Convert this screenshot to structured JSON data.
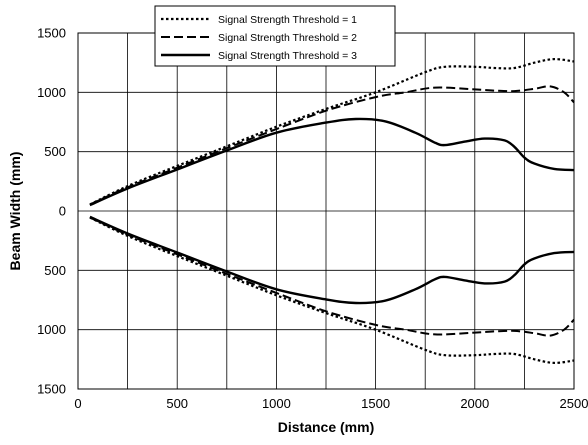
{
  "chart_data": {
    "type": "line",
    "title": "",
    "xlabel": "Distance (mm)",
    "ylabel": "Beam Width (mm)",
    "xlim": [
      0,
      2500
    ],
    "ylim": [
      -1500,
      1500
    ],
    "grid": true,
    "legend_position": "top",
    "x_ticks": [
      0,
      500,
      1000,
      1500,
      2000,
      2500
    ],
    "x_tick_labels": [
      "0",
      "500",
      "1000",
      "1500",
      "2000",
      "2500"
    ],
    "y_ticks": [
      1500,
      1000,
      500,
      0,
      -500,
      -1000,
      -1500
    ],
    "y_tick_labels": [
      "1500",
      "1000",
      "500",
      "0",
      "500",
      "1000",
      "1500"
    ],
    "series": [
      {
        "name": "Signal Strength Threshold = 1",
        "dash": "dotted",
        "x": [
          60,
          250,
          500,
          750,
          1000,
          1250,
          1500,
          1750,
          1850,
          2000,
          2100,
          2200,
          2300,
          2400,
          2500
        ],
        "upper": [
          55,
          210,
          380,
          545,
          710,
          860,
          1000,
          1170,
          1215,
          1215,
          1205,
          1205,
          1250,
          1280,
          1260
        ],
        "lower": [
          -55,
          -210,
          -380,
          -545,
          -710,
          -860,
          -1000,
          -1170,
          -1215,
          -1215,
          -1205,
          -1205,
          -1250,
          -1280,
          -1260
        ]
      },
      {
        "name": "Signal Strength Threshold = 2",
        "dash": "dashed",
        "x": [
          60,
          250,
          500,
          750,
          1000,
          1250,
          1500,
          1650,
          1800,
          2000,
          2100,
          2200,
          2300,
          2380,
          2450,
          2500
        ],
        "upper": [
          55,
          200,
          365,
          530,
          690,
          845,
          960,
          1000,
          1040,
          1025,
          1015,
          1010,
          1030,
          1050,
          1000,
          915
        ],
        "lower": [
          -55,
          -200,
          -365,
          -530,
          -690,
          -845,
          -960,
          -1000,
          -1040,
          -1025,
          -1015,
          -1010,
          -1030,
          -1050,
          -1000,
          -915
        ]
      },
      {
        "name": "Signal Strength Threshold = 3",
        "dash": "solid",
        "x": [
          60,
          250,
          500,
          750,
          1000,
          1250,
          1400,
          1550,
          1700,
          1800,
          1850,
          1950,
          2050,
          2150,
          2200,
          2250,
          2300,
          2400,
          2500
        ],
        "upper": [
          50,
          190,
          350,
          510,
          660,
          745,
          775,
          755,
          660,
          575,
          555,
          585,
          610,
          595,
          540,
          450,
          400,
          355,
          345
        ],
        "lower": [
          -50,
          -190,
          -350,
          -510,
          -660,
          -745,
          -775,
          -755,
          -660,
          -575,
          -555,
          -585,
          -610,
          -595,
          -540,
          -450,
          -400,
          -355,
          -345
        ]
      }
    ]
  }
}
